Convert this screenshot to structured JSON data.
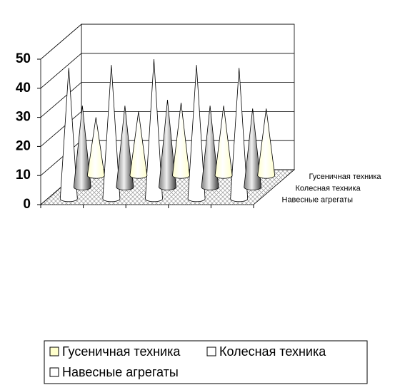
{
  "chart_data": {
    "type": "cone3d",
    "categories": [
      null,
      null,
      null,
      null,
      null
    ],
    "series": [
      {
        "name": "Гусеничная техника",
        "color": "#ffffcc",
        "values": [
          20,
          22,
          25,
          24,
          23
        ]
      },
      {
        "name": "Колесная техника",
        "color": "#808080",
        "values": [
          28,
          28,
          30,
          28,
          27
        ]
      },
      {
        "name": "Навесные агрегаты",
        "color": "#ffffff",
        "values": [
          45,
          46,
          48,
          46,
          45
        ]
      }
    ],
    "ylim": [
      0,
      50
    ],
    "yticks": [
      0,
      10,
      20,
      30,
      40,
      50
    ],
    "grid": true,
    "legend": "bottom"
  }
}
